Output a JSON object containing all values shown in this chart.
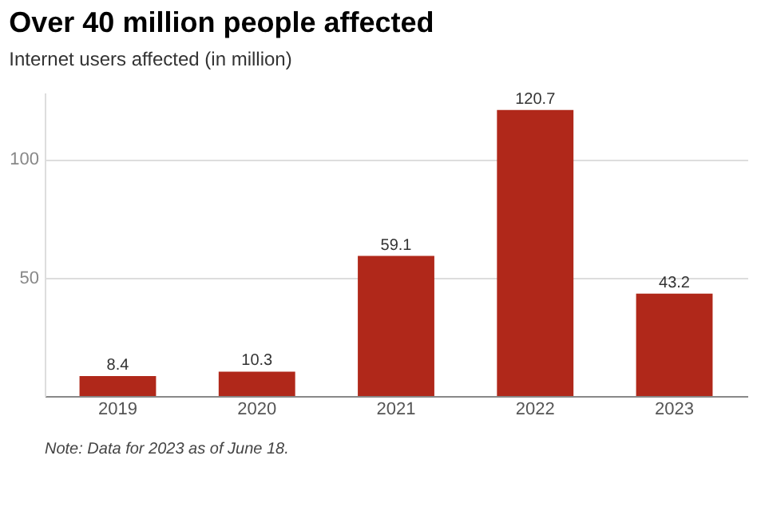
{
  "chart_data": {
    "type": "bar",
    "title": "Over 40 million people affected",
    "subtitle": "Internet users affected (in million)",
    "categories": [
      "2019",
      "2020",
      "2021",
      "2022",
      "2023"
    ],
    "values": [
      8.4,
      10.3,
      59.1,
      120.7,
      43.2
    ],
    "color": "#b0281a",
    "ylim": [
      0,
      128
    ],
    "yticks": [
      50,
      100
    ],
    "grid": "y",
    "data_labels": true,
    "annotations": [
      "Note: Data for 2023 as of June 18."
    ]
  }
}
